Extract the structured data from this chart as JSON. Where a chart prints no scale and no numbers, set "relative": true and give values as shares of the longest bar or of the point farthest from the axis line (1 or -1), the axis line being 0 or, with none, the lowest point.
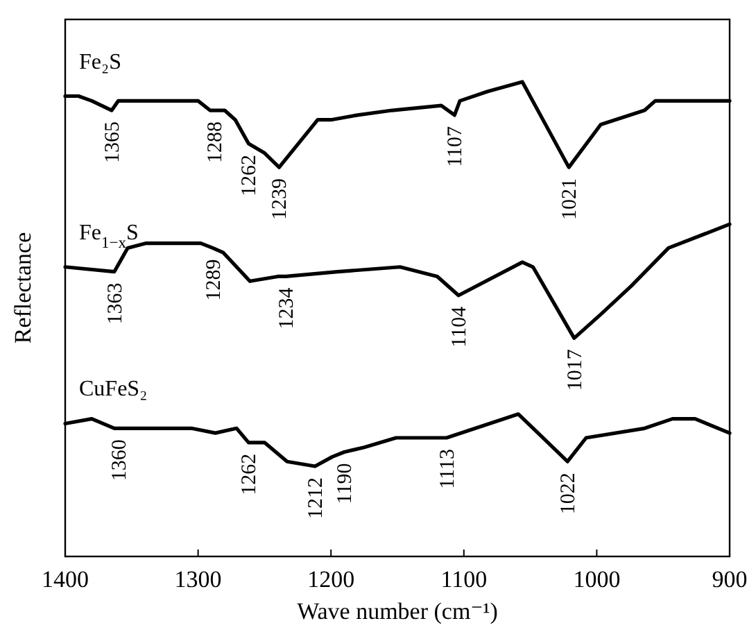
{
  "chart_data": {
    "type": "line",
    "relative": true,
    "xlabel": "Wave number (cm⁻¹)",
    "ylabel": "Reflectance",
    "xlim": [
      1400,
      900
    ],
    "xticks": [
      1400,
      1300,
      1200,
      1100,
      1000,
      900
    ],
    "tick_labels": "x",
    "legend": false,
    "grid": false,
    "marker": "none",
    "line_style": "solid",
    "series": [
      {
        "name": "Fe₂S",
        "color": "#000000",
        "x": [
          1400,
          1390,
          1380,
          1365,
          1360,
          1300,
          1291,
          1280,
          1272,
          1262,
          1250,
          1239,
          1210,
          1200,
          1180,
          1154,
          1117,
          1107,
          1103,
          1082,
          1056,
          1021,
          997,
          964,
          956,
          926,
          900
        ],
        "values": [
          0.97,
          0.97,
          0.96,
          0.94,
          0.96,
          0.96,
          0.94,
          0.94,
          0.92,
          0.87,
          0.85,
          0.82,
          0.92,
          0.92,
          0.93,
          0.94,
          0.95,
          0.93,
          0.96,
          0.98,
          1.0,
          0.82,
          0.91,
          0.94,
          0.96,
          0.96,
          0.96
        ]
      },
      {
        "name": "Fe$_{1−x}$S",
        "color": "#000000",
        "x": [
          1400,
          1363,
          1353,
          1339,
          1298,
          1289,
          1281,
          1261,
          1240,
          1234,
          1195,
          1148,
          1120,
          1104,
          1056,
          1048,
          1017,
          997,
          974,
          946,
          900
        ],
        "values": [
          0.61,
          0.6,
          0.65,
          0.66,
          0.66,
          0.65,
          0.64,
          0.58,
          0.59,
          0.59,
          0.6,
          0.61,
          0.59,
          0.55,
          0.62,
          0.61,
          0.46,
          0.51,
          0.57,
          0.65,
          0.7
        ]
      },
      {
        "name": "CuFeS₂",
        "color": "#000000",
        "x": [
          1400,
          1380,
          1363,
          1360,
          1305,
          1287,
          1271,
          1262,
          1250,
          1233,
          1212,
          1199,
          1190,
          1175,
          1151,
          1113,
          1059,
          1022,
          1008,
          964,
          943,
          926,
          900
        ],
        "values": [
          0.28,
          0.29,
          0.27,
          0.27,
          0.27,
          0.26,
          0.27,
          0.24,
          0.24,
          0.2,
          0.19,
          0.21,
          0.22,
          0.23,
          0.25,
          0.25,
          0.3,
          0.2,
          0.25,
          0.27,
          0.29,
          0.29,
          0.26
        ]
      }
    ],
    "annotations": [
      {
        "text": "1365",
        "x": 1365,
        "y": 0.94
      },
      {
        "text": "1288",
        "x": 1288,
        "y": 0.94
      },
      {
        "text": "1262",
        "x": 1262,
        "y": 0.87
      },
      {
        "text": "1239",
        "x": 1239,
        "y": 0.82
      },
      {
        "text": "1107",
        "x": 1107,
        "y": 0.93
      },
      {
        "text": "1021",
        "x": 1021,
        "y": 0.82
      },
      {
        "text": "1363",
        "x": 1363,
        "y": 0.6
      },
      {
        "text": "1289",
        "x": 1289,
        "y": 0.65
      },
      {
        "text": "1234",
        "x": 1234,
        "y": 0.59
      },
      {
        "text": "1104",
        "x": 1104,
        "y": 0.55
      },
      {
        "text": "1017",
        "x": 1017,
        "y": 0.46
      },
      {
        "text": "1360",
        "x": 1360,
        "y": 0.27
      },
      {
        "text": "1262",
        "x": 1262,
        "y": 0.24
      },
      {
        "text": "1212",
        "x": 1212,
        "y": 0.19
      },
      {
        "text": "1190",
        "x": 1190,
        "y": 0.22
      },
      {
        "text": "1113",
        "x": 1113,
        "y": 0.25
      },
      {
        "text": "1022",
        "x": 1022,
        "y": 0.2
      }
    ]
  }
}
